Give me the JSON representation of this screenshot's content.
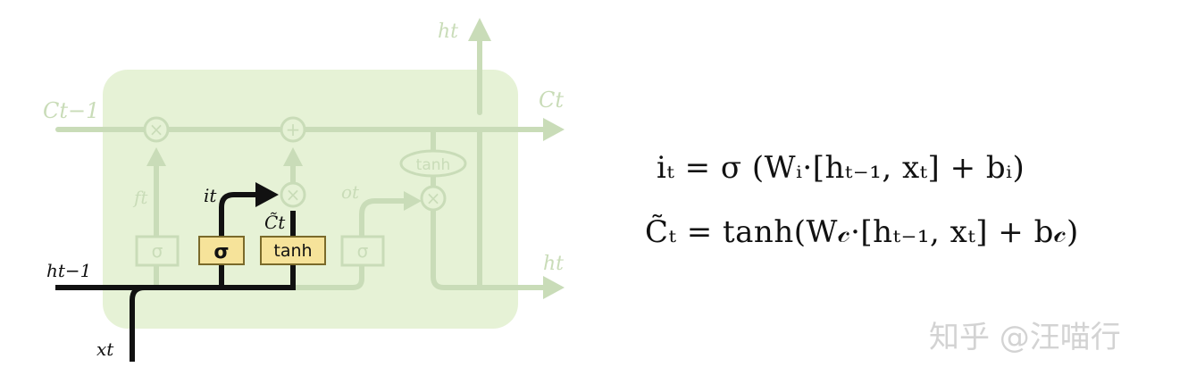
{
  "diagram": {
    "labels": {
      "c_prev": "Ct−1",
      "c_next": "Ct",
      "h_top": "ht",
      "h_right": "ht",
      "h_prev": "ht−1",
      "x_t": "xt",
      "f_t": "ft",
      "i_t": "it",
      "c_tilde": "C̃t",
      "o_t": "ot"
    },
    "gates": {
      "sigma_forget": "σ",
      "sigma_input": "σ",
      "tanh_input": "tanh",
      "sigma_output": "σ",
      "tanh_output": "tanh"
    },
    "ops": {
      "multiply": "×",
      "add": "+"
    }
  },
  "equations": {
    "input_gate": "iₜ = σ (Wᵢ·[hₜ₋₁, xₜ]  +  bᵢ)",
    "candidate": "C̃ₜ = tanh(W𝒸·[hₜ₋₁, xₜ]  +  b𝒸)"
  },
  "watermark": "知乎 @汪喵行",
  "colors": {
    "cell_fill": "#e6f2d6",
    "faded_line": "#c9dcb8",
    "active_line": "#111111",
    "gate_fill": "#f6e39a",
    "gate_border": "#7a6a2a"
  }
}
